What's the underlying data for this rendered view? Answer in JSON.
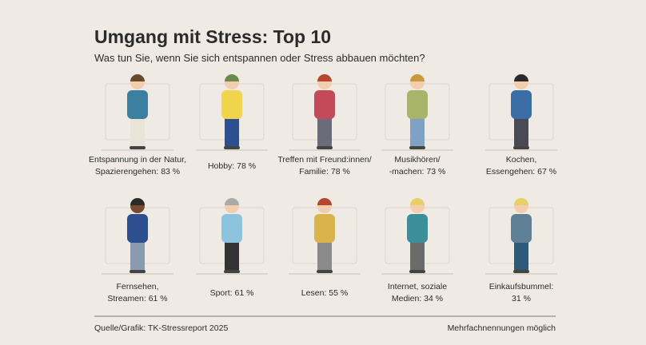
{
  "header": {
    "title": "Umgang mit Stress: Top 10",
    "subtitle": "Was tun Sie, wenn Sie sich entspannen oder Stress abbauen möchten?"
  },
  "items": [
    {
      "label": [
        "Entspannung in der Natur,",
        "Spazierengehen: 83 %"
      ]
    },
    {
      "label": [
        "Hobby: 78 %"
      ]
    },
    {
      "label": [
        "Treffen mit Freund:innen/",
        "Familie: 78 %"
      ]
    },
    {
      "label": [
        "Musikhören/",
        "-machen: 73 %"
      ]
    },
    {
      "label": [
        "Kochen,",
        "Essengehen: 67 %"
      ]
    },
    {
      "label": [
        "Fernsehen,",
        "Streamen: 61 %"
      ]
    },
    {
      "label": [
        "Sport: 61 %"
      ]
    },
    {
      "label": [
        "Lesen: 55 %"
      ]
    },
    {
      "label": [
        "Internet, soziale",
        "Medien: 34 %"
      ]
    },
    {
      "label": [
        "Einkaufsbummel:",
        "31 %"
      ]
    }
  ],
  "footer": {
    "source": "Quelle/Grafik: TK-Stressreport 2025",
    "note": "Mehrfachnennungen möglich"
  }
}
